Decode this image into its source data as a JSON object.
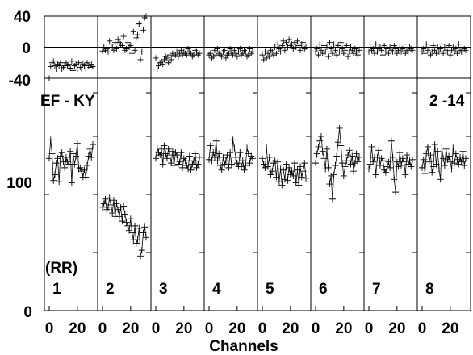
{
  "chart_data": {
    "type": "scatter",
    "xlabel": "Channels",
    "annotation_left": "EF - KY",
    "annotation_right": "2 -14",
    "panel_tag": "(RR)",
    "top_plot": {
      "ylim": [
        -40,
        40
      ],
      "yticks": [
        "40",
        "0",
        "-40"
      ]
    },
    "bottom_plot": {
      "ylim": [
        0,
        200
      ],
      "yticks": [
        "100",
        "0"
      ]
    },
    "x_ticks": [
      "0",
      "20"
    ],
    "channel_range": [
      0,
      31
    ],
    "panels": [
      {
        "label": "1",
        "main": [
          131,
          147,
          135,
          112,
          117,
          127,
          131,
          111,
          133,
          136,
          128,
          123,
          132,
          128,
          126,
          137,
          110,
          135,
          126,
          133,
          144,
          122,
          123,
          120,
          115,
          121,
          115,
          125,
          133,
          139,
          132,
          143
        ],
        "resid": [
          -40,
          -25,
          -20,
          -18,
          -24,
          -28,
          -22,
          -24,
          -20,
          -28,
          -26,
          -24,
          -20,
          -24,
          -22,
          -27,
          -18,
          -30,
          -24,
          -22,
          -28,
          -20,
          -26,
          -28,
          -22,
          -24,
          -28,
          -20,
          -24,
          -26,
          -22,
          -25
        ]
      },
      {
        "label": "2",
        "main": [
          89,
          92,
          96,
          87,
          89,
          97,
          91,
          84,
          95,
          81,
          92,
          87,
          81,
          89,
          77,
          90,
          83,
          76,
          73,
          69,
          79,
          67,
          61,
          73,
          58,
          61,
          71,
          47,
          52,
          67,
          72,
          63
        ],
        "resid": [
          -5,
          0,
          -4,
          -2,
          -6,
          8,
          4,
          0,
          -4,
          6,
          -2,
          10,
          6,
          4,
          2,
          14,
          -4,
          -2,
          6,
          0,
          2,
          -8,
          20,
          -4,
          12,
          16,
          30,
          -16,
          -6,
          22,
          38,
          40
        ]
      },
      {
        "label": "3",
        "main": [
          131,
          140,
          136,
          134,
          139,
          126,
          142,
          135,
          131,
          139,
          134,
          127,
          137,
          125,
          136,
          134,
          126,
          128,
          136,
          123,
          131,
          129,
          125,
          122,
          133,
          121,
          126,
          129,
          135,
          123,
          126,
          132
        ],
        "resid": [
          -14,
          -28,
          -24,
          -20,
          -18,
          -22,
          -16,
          -12,
          -14,
          -20,
          -10,
          -16,
          -8,
          -12,
          -10,
          -6,
          -12,
          -8,
          -4,
          -10,
          -6,
          -8,
          -10,
          -2,
          -6,
          -8,
          -12,
          -10,
          -4,
          -6,
          -10,
          -8
        ]
      },
      {
        "label": "4",
        "main": [
          130,
          142,
          129,
          136,
          132,
          146,
          129,
          135,
          125,
          121,
          132,
          126,
          129,
          134,
          123,
          136,
          126,
          147,
          140,
          132,
          127,
          124,
          136,
          124,
          129,
          121,
          125,
          140,
          135,
          127,
          133,
          131
        ],
        "resid": [
          -10,
          -8,
          -14,
          -12,
          -4,
          -10,
          -2,
          -8,
          -10,
          -12,
          -6,
          -4,
          -14,
          -10,
          -8,
          -2,
          -6,
          -10,
          -4,
          -8,
          -12,
          -6,
          -2,
          -10,
          -8,
          -4,
          -6,
          -12,
          -10,
          -2,
          -8,
          -6
        ]
      },
      {
        "label": "5",
        "main": [
          131,
          126,
          123,
          140,
          124,
          132,
          117,
          120,
          127,
          129,
          115,
          128,
          111,
          122,
          108,
          121,
          113,
          126,
          112,
          123,
          117,
          120,
          116,
          127,
          110,
          121,
          108,
          124,
          115,
          120,
          127,
          114
        ],
        "resid": [
          -10,
          -16,
          -6,
          -14,
          -8,
          -12,
          -4,
          -6,
          -10,
          0,
          -8,
          4,
          -2,
          -6,
          2,
          8,
          -4,
          6,
          0,
          10,
          2,
          4,
          -2,
          6,
          0,
          8,
          2,
          -4,
          4,
          6,
          -2,
          0
        ]
      },
      {
        "label": "6",
        "main": [
          127,
          135,
          141,
          146,
          150,
          137,
          131,
          122,
          139,
          123,
          109,
          116,
          96,
          117,
          125,
          133,
          145,
          157,
          142,
          127,
          116,
          124,
          129,
          134,
          138,
          126,
          133,
          120,
          127,
          135,
          128,
          132
        ],
        "resid": [
          -6,
          -2,
          -10,
          4,
          -4,
          -8,
          2,
          -6,
          0,
          -12,
          6,
          -2,
          -8,
          4,
          -4,
          -10,
          2,
          -6,
          6,
          -2,
          -8,
          -4,
          2,
          -12,
          -6,
          0,
          -4,
          -8,
          -2,
          -6,
          -10,
          -4
        ]
      },
      {
        "label": "7",
        "main": [
          122,
          126,
          141,
          128,
          132,
          117,
          132,
          138,
          125,
          131,
          129,
          121,
          119,
          124,
          128,
          123,
          146,
          132,
          113,
          102,
          128,
          124,
          136,
          125,
          131,
          128,
          117,
          134,
          126,
          129,
          124,
          130
        ],
        "resid": [
          -6,
          0,
          -4,
          -2,
          -8,
          4,
          -6,
          -2,
          0,
          -4,
          -10,
          2,
          -6,
          -2,
          -8,
          0,
          -4,
          -6,
          2,
          -2,
          -8,
          -4,
          0,
          -6,
          -2,
          4,
          -8,
          -4,
          -6,
          0,
          -2,
          -4
        ]
      },
      {
        "label": "8",
        "main": [
          123,
          130,
          118,
          135,
          141,
          128,
          134,
          119,
          124,
          143,
          126,
          137,
          122,
          113,
          140,
          131,
          125,
          139,
          130,
          133,
          128,
          122,
          140,
          127,
          135,
          130,
          126,
          132,
          128,
          137,
          125,
          131
        ],
        "resid": [
          -6,
          -2,
          -8,
          4,
          -4,
          0,
          -10,
          -6,
          2,
          -4,
          -8,
          0,
          -6,
          -2,
          4,
          -8,
          0,
          -4,
          -6,
          2,
          -10,
          -4,
          0,
          -6,
          -2,
          -8,
          4,
          -4,
          -6,
          0,
          -2,
          -4
        ]
      }
    ]
  }
}
